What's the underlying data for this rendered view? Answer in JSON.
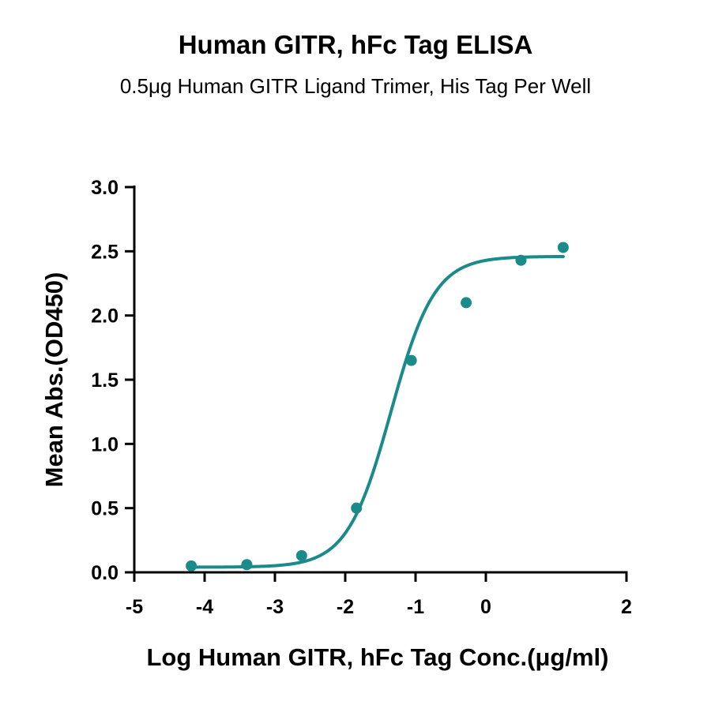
{
  "chart_data": {
    "type": "scatter",
    "title": "Human GITR, hFc Tag ELISA",
    "subtitle": "0.5μg Human GITR Ligand Trimer, His Tag Per Well",
    "xlabel": "Log Human GITR, hFc Tag Conc.(μg/ml)",
    "ylabel": "Mean Abs.(OD450)",
    "xlim": [
      -5,
      2
    ],
    "ylim": [
      0,
      3
    ],
    "xticks": [
      -5,
      -4,
      -3,
      -2,
      -1,
      0,
      2
    ],
    "yticks": [
      "0.0",
      "0.5",
      "1.0",
      "1.5",
      "2.0",
      "2.5",
      "3.0"
    ],
    "x_tick_labels": [
      "-5",
      "-4",
      "-3",
      "-2",
      "-1",
      "0",
      "2"
    ],
    "grid": false,
    "colors": {
      "series": "#1a8a8a"
    },
    "series": [
      {
        "points": [
          {
            "x": -4.19,
            "y": 0.05
          },
          {
            "x": -3.4,
            "y": 0.06
          },
          {
            "x": -2.62,
            "y": 0.13
          },
          {
            "x": -1.84,
            "y": 0.5
          },
          {
            "x": -1.06,
            "y": 1.65
          },
          {
            "x": -0.28,
            "y": 2.1
          },
          {
            "x": 0.5,
            "y": 2.43
          },
          {
            "x": 1.1,
            "y": 2.53
          }
        ],
        "fit": {
          "model": "4PL",
          "bottom": 0.04,
          "top": 2.46,
          "log_ec50": -1.35,
          "hill": 1.4,
          "x_range": [
            -4.19,
            1.1
          ]
        }
      }
    ]
  }
}
